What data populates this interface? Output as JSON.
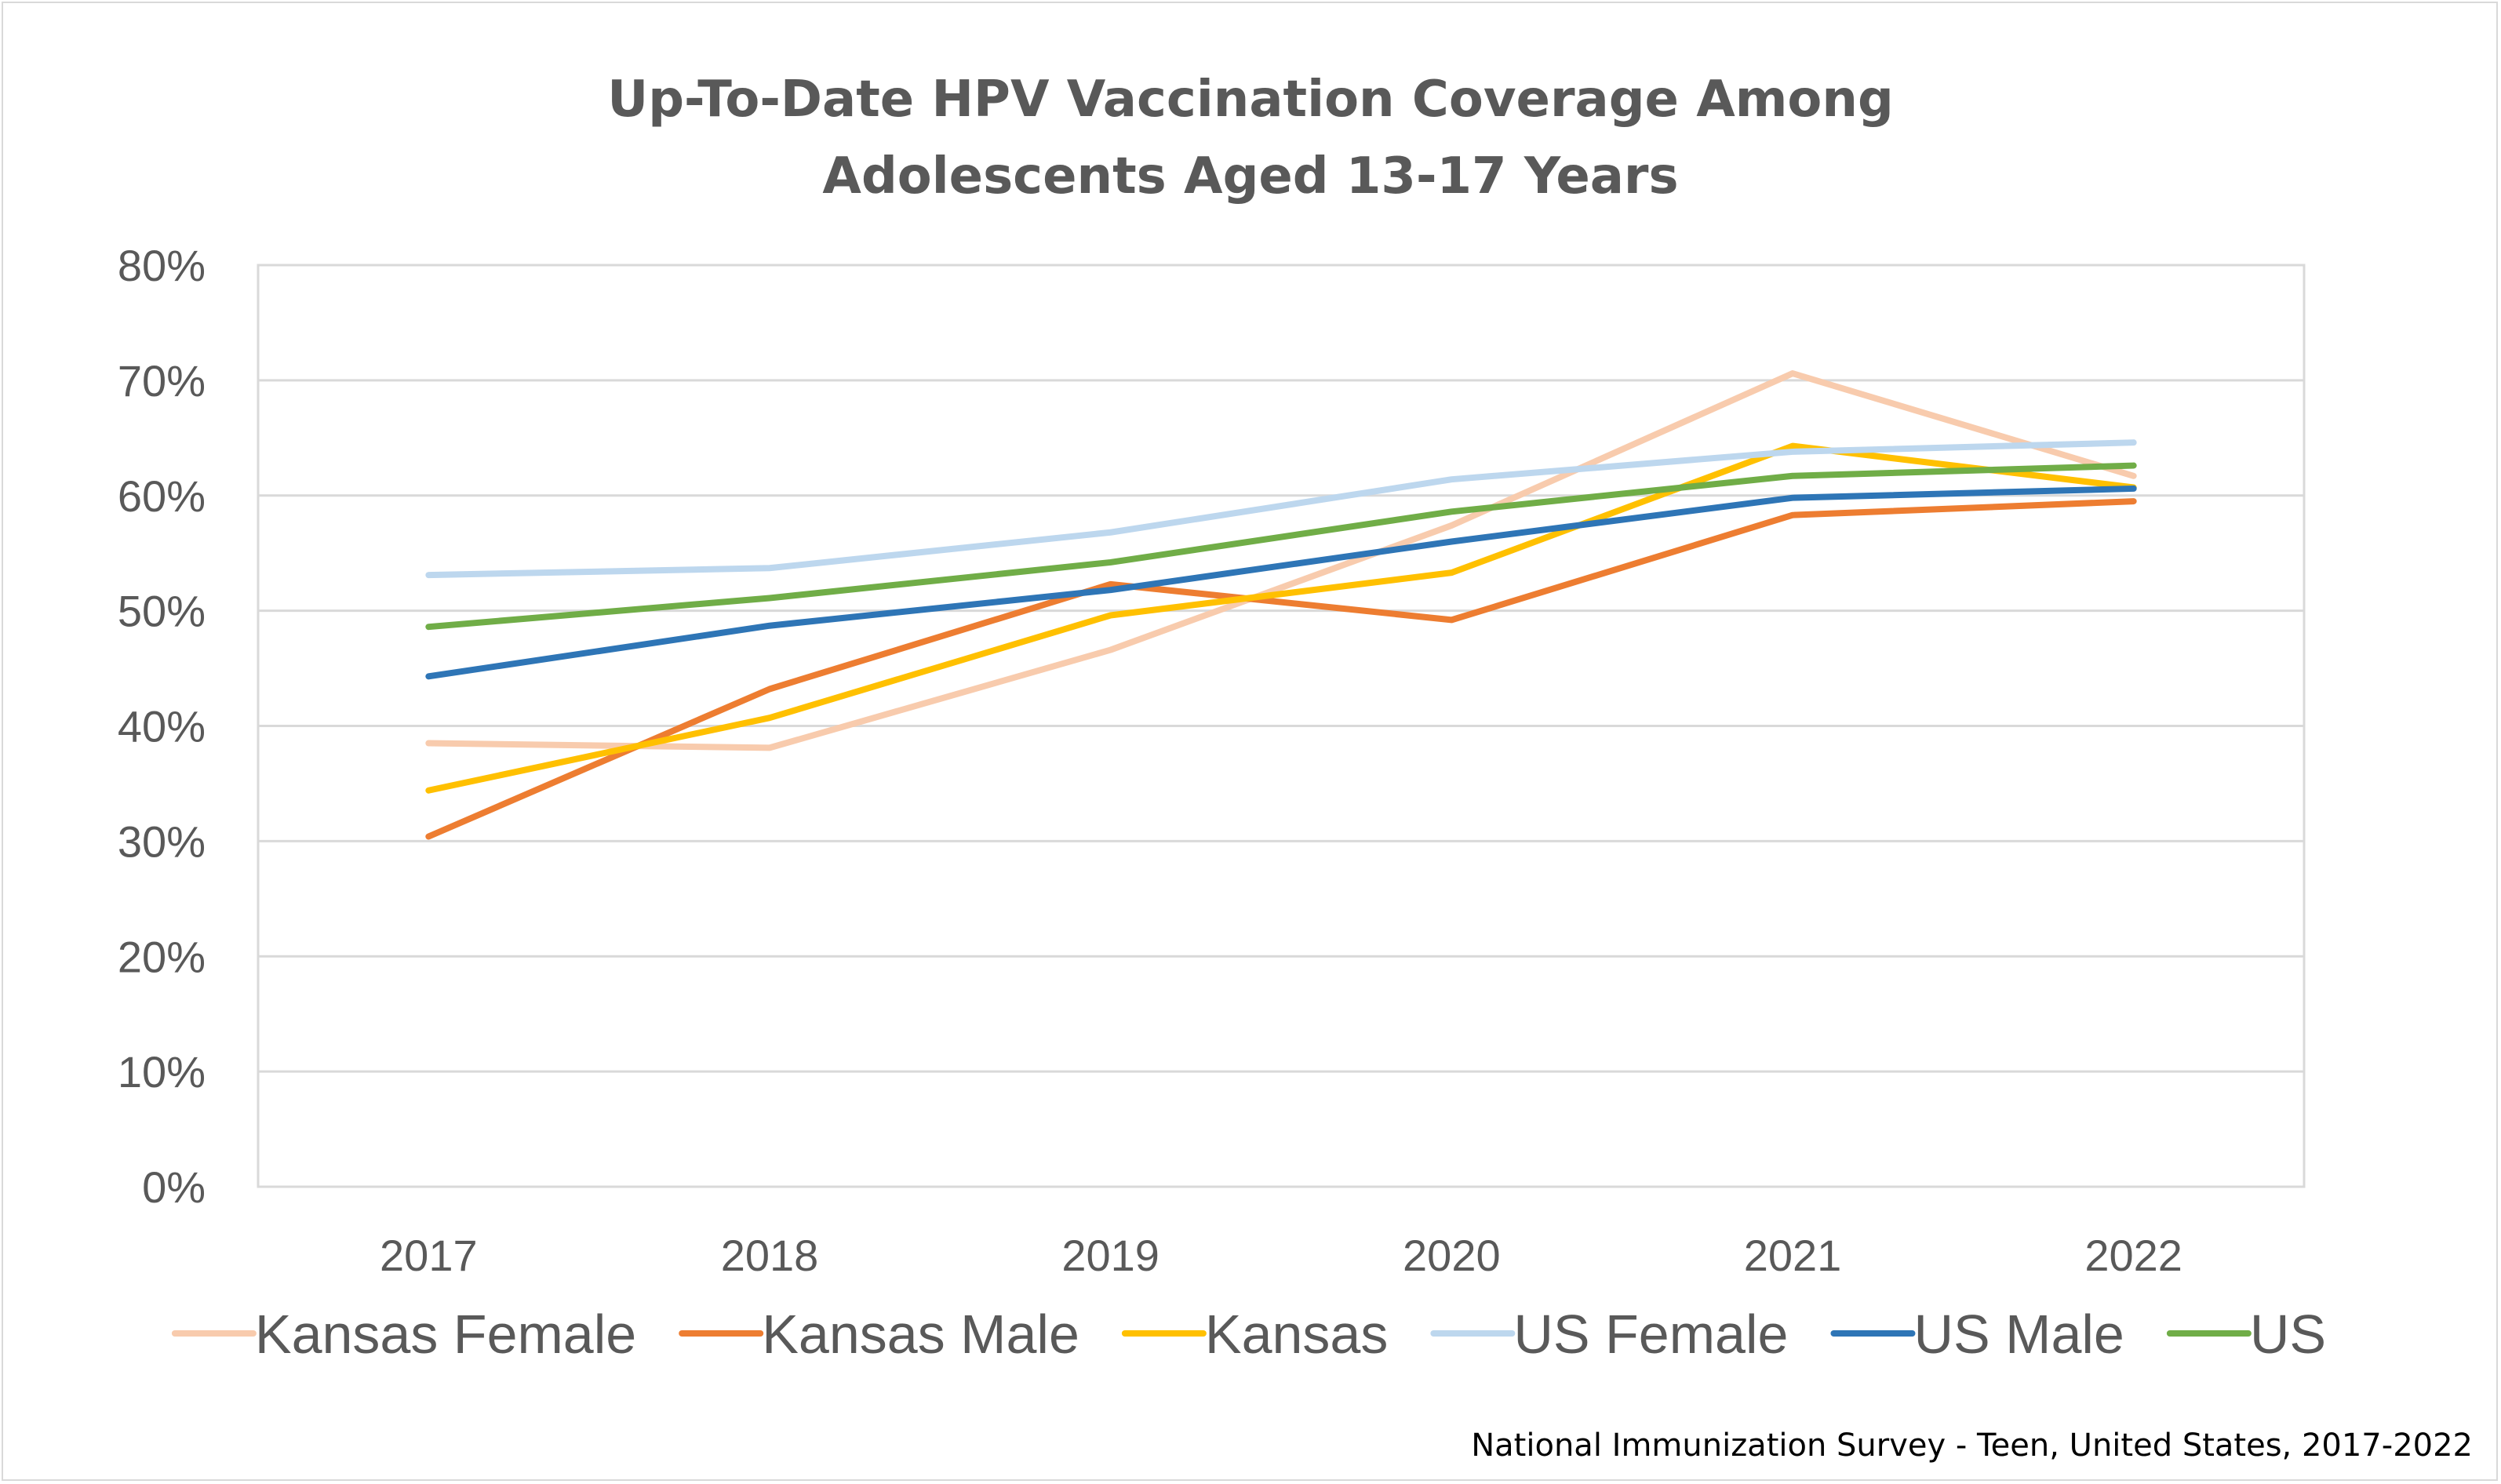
{
  "chart_data": {
    "type": "line",
    "title_lines": [
      "Up-To-Date HPV Vaccination Coverage Among",
      "Adolescents Aged 13-17 Years"
    ],
    "categories": [
      "2017",
      "2018",
      "2019",
      "2020",
      "2021",
      "2022"
    ],
    "ylim": [
      0,
      80
    ],
    "y_ticks": [
      0,
      10,
      20,
      30,
      40,
      50,
      60,
      70,
      80
    ],
    "y_tick_labels": [
      "0%",
      "10%",
      "20%",
      "30%",
      "40%",
      "50%",
      "60%",
      "70%",
      "80%"
    ],
    "grid": true,
    "legend_position": "bottom",
    "series": [
      {
        "name": "Kansas Female",
        "color": "#f8cbad",
        "values": [
          38.5,
          38.1,
          46.6,
          57.4,
          70.6,
          61.7
        ]
      },
      {
        "name": "Kansas Male",
        "color": "#ed7d31",
        "values": [
          30.4,
          43.2,
          52.3,
          49.2,
          58.3,
          59.5
        ]
      },
      {
        "name": "Kansas",
        "color": "#ffc000",
        "values": [
          34.4,
          40.7,
          49.6,
          53.3,
          64.3,
          60.7
        ]
      },
      {
        "name": "US Female",
        "color": "#bdd7ee",
        "values": [
          53.1,
          53.7,
          56.8,
          61.4,
          63.8,
          64.6
        ]
      },
      {
        "name": "US Male",
        "color": "#2e75b6",
        "values": [
          44.3,
          48.7,
          51.8,
          56.0,
          59.8,
          60.6
        ]
      },
      {
        "name": "US",
        "color": "#70ad47",
        "values": [
          48.6,
          51.1,
          54.2,
          58.6,
          61.7,
          62.6
        ]
      }
    ],
    "source_note": "National Immunization Survey - Teen, United States, 2017-2022"
  }
}
